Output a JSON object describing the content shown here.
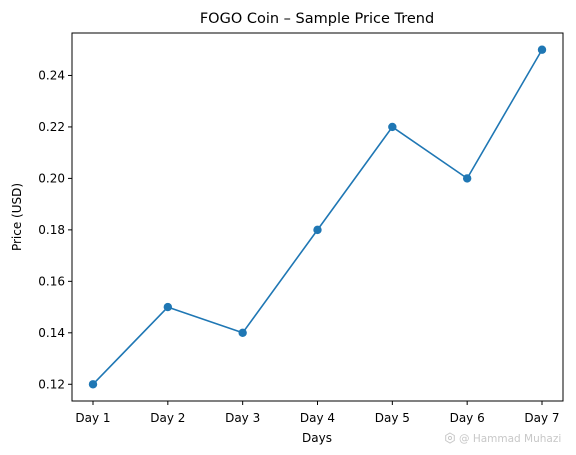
{
  "chart_data": {
    "type": "line",
    "title": "FOGO Coin – Sample Price Trend",
    "xlabel": "Days",
    "ylabel": "Price (USD)",
    "categories": [
      "Day 1",
      "Day 2",
      "Day 3",
      "Day 4",
      "Day 5",
      "Day 6",
      "Day 7"
    ],
    "series": [
      {
        "values": [
          0.12,
          0.15,
          0.14,
          0.18,
          0.22,
          0.2,
          0.25
        ],
        "color": "#1f77b4",
        "marker": "circle"
      }
    ],
    "yticks": [
      "0.12",
      "0.14",
      "0.16",
      "0.18",
      "0.20",
      "0.22",
      "0.24"
    ],
    "ylim": [
      0.1135,
      0.2565
    ],
    "grid": false,
    "legend": "none"
  },
  "watermark": {
    "text": "@ Hammad Muhazi",
    "icon": "watermark-logo-icon"
  }
}
